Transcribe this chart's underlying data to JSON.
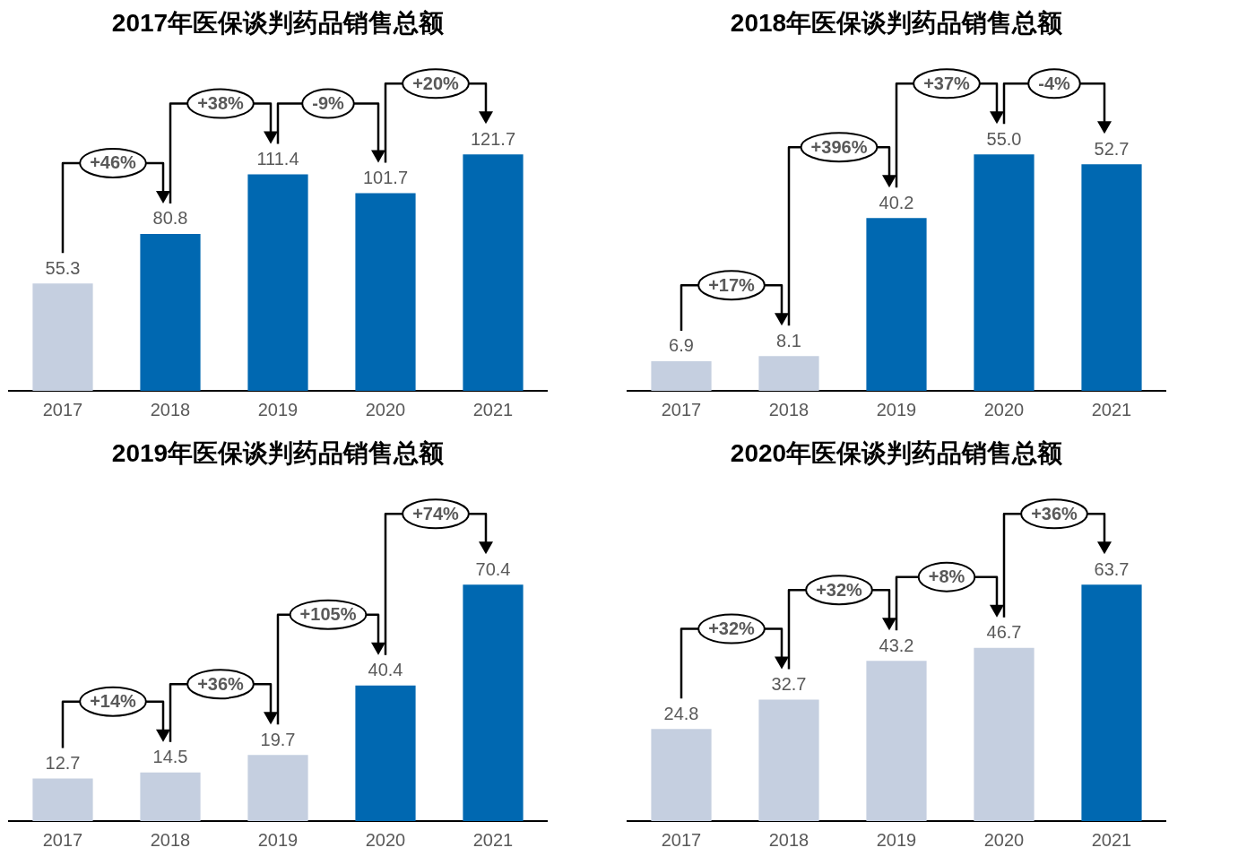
{
  "chart_data": [
    {
      "type": "bar",
      "title": "2017年医保谈判药品销售总额",
      "categories": [
        "2017",
        "2018",
        "2019",
        "2020",
        "2021"
      ],
      "values": [
        55.3,
        80.8,
        111.4,
        101.7,
        121.7
      ],
      "value_labels": [
        "55.3",
        "80.8",
        "111.4",
        "101.7",
        "121.7"
      ],
      "colors": [
        "#c5cfe0",
        "#0068b1",
        "#0068b1",
        "#0068b1",
        "#0068b1"
      ],
      "annotations": [
        "+46%",
        "+38%",
        "-9%",
        "+20%"
      ]
    },
    {
      "type": "bar",
      "title": "2018年医保谈判药品销售总额",
      "categories": [
        "2017",
        "2018",
        "2019",
        "2020",
        "2021"
      ],
      "values": [
        6.9,
        8.1,
        40.2,
        55.0,
        52.7
      ],
      "value_labels": [
        "6.9",
        "8.1",
        "40.2",
        "55.0",
        "52.7"
      ],
      "colors": [
        "#c5cfe0",
        "#c5cfe0",
        "#0068b1",
        "#0068b1",
        "#0068b1"
      ],
      "annotations": [
        "+17%",
        "+396%",
        "+37%",
        "-4%"
      ]
    },
    {
      "type": "bar",
      "title": "2019年医保谈判药品销售总额",
      "categories": [
        "2017",
        "2018",
        "2019",
        "2020",
        "2021"
      ],
      "values": [
        12.7,
        14.5,
        19.7,
        40.4,
        70.4
      ],
      "value_labels": [
        "12.7",
        "14.5",
        "19.7",
        "40.4",
        "70.4"
      ],
      "colors": [
        "#c5cfe0",
        "#c5cfe0",
        "#c5cfe0",
        "#0068b1",
        "#0068b1"
      ],
      "annotations": [
        "+14%",
        "+36%",
        "+105%",
        "+74%"
      ]
    },
    {
      "type": "bar",
      "title": "2020年医保谈判药品销售总额",
      "categories": [
        "2017",
        "2018",
        "2019",
        "2020",
        "2021"
      ],
      "values": [
        24.8,
        32.7,
        43.2,
        46.7,
        63.7
      ],
      "value_labels": [
        "24.8",
        "32.7",
        "43.2",
        "46.7",
        "63.7"
      ],
      "colors": [
        "#c5cfe0",
        "#c5cfe0",
        "#c5cfe0",
        "#c5cfe0",
        "#0068b1"
      ],
      "annotations": [
        "+32%",
        "+32%",
        "+8%",
        "+36%"
      ]
    }
  ]
}
